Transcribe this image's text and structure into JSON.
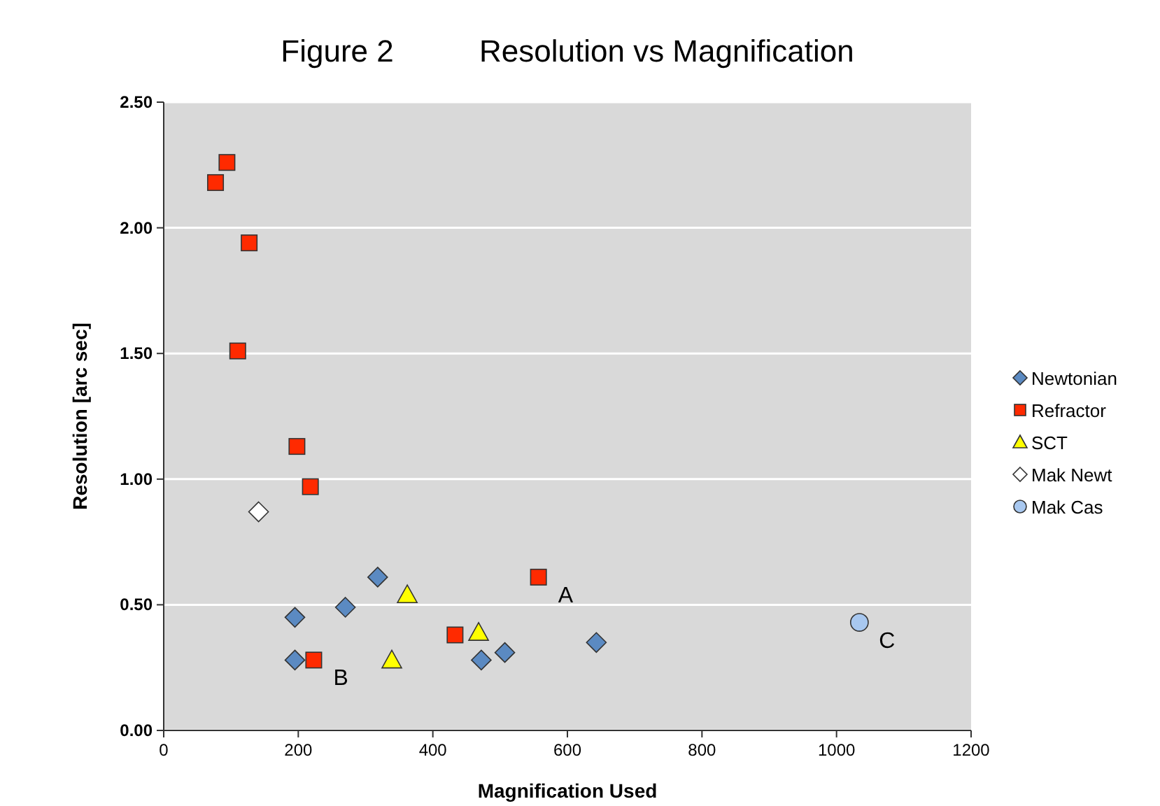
{
  "chart_data": {
    "type": "scatter",
    "title": "Figure 2          Resolution vs Magnification",
    "xlabel": "Magnification Used",
    "ylabel": "Resolution [arc sec]",
    "xlim": [
      0,
      1200
    ],
    "xticks": [
      0,
      200,
      400,
      600,
      800,
      1000,
      1200
    ],
    "ylim": [
      0,
      2.5
    ],
    "yticks": [
      {
        "value": 0,
        "label": "0.00"
      },
      {
        "value": 0.5,
        "label": "0.50"
      },
      {
        "value": 1,
        "label": "1.00"
      },
      {
        "value": 1.5,
        "label": "1.50"
      },
      {
        "value": 2,
        "label": "2.00"
      },
      {
        "value": 2.5,
        "label": "2.50"
      }
    ],
    "grid": "y",
    "legend": "right",
    "series": [
      {
        "name": "Newtonian",
        "color": "#5b8ac2",
        "marker": "diamond",
        "x": [
          195,
          195,
          270,
          318,
          643,
          507,
          472
        ],
        "values": [
          0.45,
          0.28,
          0.49,
          0.61,
          0.35,
          0.31,
          0.28
        ]
      },
      {
        "name": "Refractor",
        "color": "#ff2a00",
        "marker": "square",
        "x": [
          77,
          94,
          127,
          110,
          198,
          218,
          223,
          433,
          557
        ],
        "values": [
          2.18,
          2.26,
          1.94,
          1.51,
          1.13,
          0.97,
          0.28,
          0.38,
          0.61
        ]
      },
      {
        "name": "SCT",
        "color": "#ffff00",
        "marker": "triangle",
        "x": [
          362,
          339,
          468
        ],
        "values": [
          0.54,
          0.28,
          0.39
        ]
      },
      {
        "name": "Mak Newt",
        "color": "#ffffff",
        "marker": "diamond",
        "x": [
          141
        ],
        "values": [
          0.87
        ]
      },
      {
        "name": "Mak Cas",
        "color": "#a8c8f0",
        "marker": "circle",
        "x": [
          1034
        ],
        "values": [
          0.43
        ]
      }
    ],
    "annotations": [
      {
        "text": "A",
        "x": 557,
        "y": 0.61
      },
      {
        "text": "B",
        "x": 223,
        "y": 0.28
      },
      {
        "text": "C",
        "x": 1034,
        "y": 0.43
      }
    ]
  }
}
